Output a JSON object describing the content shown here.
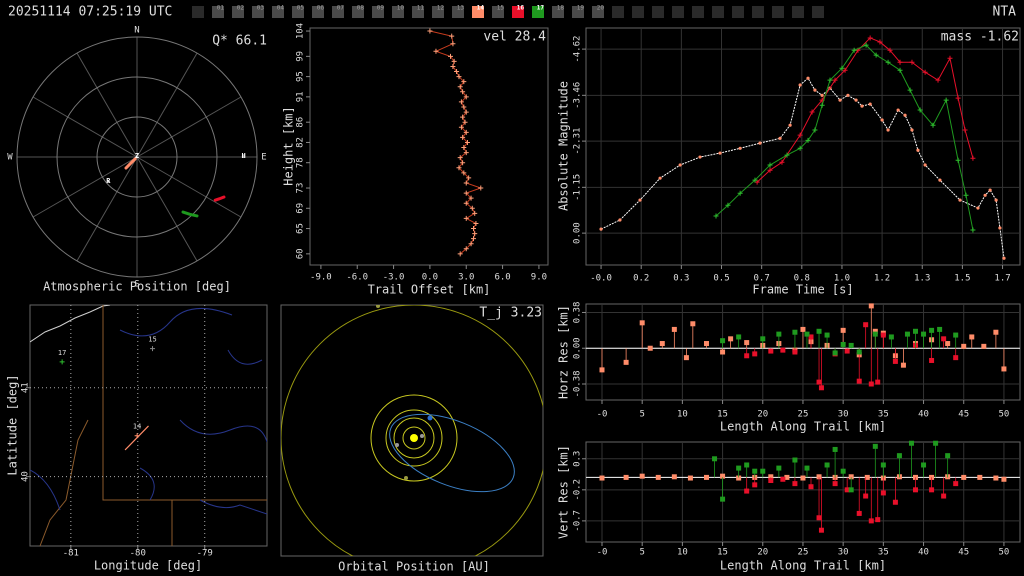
{
  "header": {
    "timestamp": "20251114 07:25:19 UTC",
    "station": "NTA",
    "slots": [
      {
        "label": "01"
      },
      {
        "label": "02"
      },
      {
        "label": "03"
      },
      {
        "label": "04"
      },
      {
        "label": "05"
      },
      {
        "label": "06"
      },
      {
        "label": "07"
      },
      {
        "label": "08"
      },
      {
        "label": "09"
      },
      {
        "label": "10"
      },
      {
        "label": "11"
      },
      {
        "label": "12"
      },
      {
        "label": "13"
      },
      {
        "label": "14",
        "color": "#ff8c69"
      },
      {
        "label": "15"
      },
      {
        "label": "16",
        "color": "#e8102a"
      },
      {
        "label": "17",
        "color": "#1f9a1f"
      },
      {
        "label": "18"
      },
      {
        "label": "19"
      },
      {
        "label": "20"
      }
    ]
  },
  "chart_data": [
    {
      "type": "polar",
      "title": "Atmospheric Position [deg]",
      "annotation": "Q* 66.1",
      "directions": [
        "N",
        "E",
        "S",
        "W"
      ],
      "rlim": [
        0,
        90
      ],
      "rticks": [
        30,
        60,
        90
      ],
      "markers": [
        {
          "label": "Z",
          "az": 0,
          "zd": 0
        },
        {
          "label": "R",
          "az": 229,
          "zd": 28.5
        },
        {
          "label": "H",
          "az": 90,
          "zd": 80
        }
      ],
      "series": [
        {
          "color": "#ff8c69",
          "az": [
            225,
            225,
            225
          ],
          "zd": [
            2,
            7,
            11.7
          ]
        },
        {
          "color": "#e8102a",
          "az": [
            118.9,
            116.8,
            114.7
          ],
          "zd": [
            67,
            69.4,
            71.8
          ]
        },
        {
          "color": "#1f9a1f",
          "az": [
            140.1,
            137.3,
            134.5
          ],
          "zd": [
            53.8,
            58.5,
            63.1
          ]
        }
      ]
    },
    {
      "type": "line",
      "annotation": "vel 28.4",
      "xlabel": "Trail Offset [km]",
      "ylabel": "Height [km]",
      "xlim": [
        -9.9,
        9.75
      ],
      "ylim": [
        57.8,
        104.6
      ],
      "xticks": [
        {
          "value": -9,
          "label": "-9.0"
        },
        {
          "value": -6,
          "label": "-6.0"
        },
        {
          "value": -3,
          "label": "-3.0"
        },
        {
          "value": 0,
          "label": "0.0"
        },
        {
          "value": 3,
          "label": "3.0"
        },
        {
          "value": 6,
          "label": "6.0"
        },
        {
          "value": 9,
          "label": "9.0"
        }
      ],
      "yticks": [
        60,
        65,
        69,
        73,
        78,
        82,
        86,
        91,
        95,
        99,
        104
      ],
      "series": [
        {
          "color": "#c83c1e",
          "marker_color": "#ffa07a",
          "marker": "plus",
          "x": [
            0.0,
            1.8,
            1.9,
            0.5,
            1.7,
            2.0,
            1.9,
            2.2,
            2.4,
            2.8,
            2.5,
            2.7,
            3.0,
            2.6,
            2.8,
            3.0,
            2.7,
            2.9,
            2.6,
            3.0,
            2.7,
            3.1,
            2.8,
            3.0,
            2.5,
            2.7,
            2.4,
            2.8,
            3.2,
            3.0,
            4.2,
            3.0,
            3.4,
            3.0,
            3.5,
            3.7,
            3.0,
            3.8,
            3.6,
            3.7,
            3.6,
            3.4,
            3.0,
            2.5
          ],
          "values": [
            104,
            103,
            101.5,
            100,
            99,
            98,
            97,
            96,
            95,
            94,
            93,
            92,
            91,
            90,
            89,
            88,
            87,
            86,
            85,
            84,
            83,
            82,
            81,
            80,
            79,
            78,
            77,
            76,
            75,
            74,
            73,
            72,
            71,
            70,
            69,
            68,
            67,
            66,
            65,
            64,
            63,
            62,
            61,
            60
          ]
        }
      ]
    },
    {
      "type": "line",
      "annotation": "mass -1.62",
      "xlabel": "Frame Time [s]",
      "ylabel": "Absolute Magnitude",
      "grid": true,
      "xlim": [
        -0.063,
        1.753
      ],
      "ylim": [
        0.8,
        -5.15
      ],
      "xticks": [
        {
          "value": 0,
          "label": "-0.0"
        },
        {
          "value": 0.168,
          "label": "0.2"
        },
        {
          "value": 0.336,
          "label": "0.3"
        },
        {
          "value": 0.504,
          "label": "0.5"
        },
        {
          "value": 0.672,
          "label": "0.7"
        },
        {
          "value": 0.84,
          "label": "0.8"
        },
        {
          "value": 1.008,
          "label": "1.0"
        },
        {
          "value": 1.176,
          "label": "1.2"
        },
        {
          "value": 1.344,
          "label": "1.3"
        },
        {
          "value": 1.512,
          "label": "1.5"
        },
        {
          "value": 1.68,
          "label": "1.7"
        }
      ],
      "yticks": [
        -4.62,
        -3.46,
        -2.31,
        -1.15,
        {
          "value": 0,
          "label": "0.00"
        }
      ],
      "series": [
        {
          "color": "#ffffff",
          "marker_color": "#ff8c69",
          "marker": "dot",
          "x": [
            0.0,
            0.079,
            0.163,
            0.247,
            0.331,
            0.414,
            0.498,
            0.582,
            0.665,
            0.749,
            0.791,
            0.833,
            0.866,
            0.895,
            0.925,
            0.958,
            1.0,
            1.033,
            1.067,
            1.092,
            1.126,
            1.176,
            1.201,
            1.243,
            1.272,
            1.301,
            1.326,
            1.356,
            1.418,
            1.502,
            1.577,
            1.607,
            1.628,
            1.653,
            1.669,
            1.686
          ],
          "values": [
            -0.1,
            -0.33,
            -0.83,
            -1.38,
            -1.71,
            -1.91,
            -2.01,
            -2.13,
            -2.26,
            -2.38,
            -2.71,
            -3.72,
            -3.89,
            -3.59,
            -3.46,
            -3.64,
            -3.34,
            -3.46,
            -3.34,
            -3.19,
            -3.24,
            -2.84,
            -2.59,
            -3.09,
            -2.96,
            -2.59,
            -2.08,
            -1.71,
            -1.33,
            -0.83,
            -0.63,
            -0.95,
            -1.08,
            -0.83,
            -0.13,
            0.63
          ]
        },
        {
          "color": "#e8102a",
          "marker_color": "#e8102a",
          "marker": "plus",
          "x": [
            0.653,
            0.707,
            0.757,
            0.833,
            0.883,
            0.925,
            0.979,
            1.021,
            1.075,
            1.126,
            1.167,
            1.209,
            1.251,
            1.301,
            1.356,
            1.41,
            1.46,
            1.494,
            1.523,
            1.556
          ],
          "values": [
            -1.28,
            -1.58,
            -1.78,
            -2.46,
            -3.04,
            -3.34,
            -3.84,
            -4.09,
            -4.59,
            -4.9,
            -4.8,
            -4.59,
            -4.29,
            -4.29,
            -4.04,
            -3.84,
            -4.39,
            -3.39,
            -2.59,
            -1.88
          ]
        },
        {
          "color": "#1f9a1f",
          "marker_color": "#2fbf2f",
          "marker": "plus",
          "x": [
            0.481,
            0.531,
            0.582,
            0.644,
            0.707,
            0.778,
            0.833,
            0.866,
            0.895,
            0.925,
            0.958,
            1.008,
            1.059,
            1.109,
            1.151,
            1.201,
            1.251,
            1.293,
            1.335,
            1.389,
            1.444,
            1.494,
            1.527,
            1.556
          ],
          "values": [
            -0.43,
            -0.7,
            -1.0,
            -1.33,
            -1.71,
            -1.96,
            -2.13,
            -2.33,
            -2.59,
            -3.21,
            -3.84,
            -4.14,
            -4.59,
            -4.72,
            -4.47,
            -4.29,
            -4.09,
            -3.59,
            -3.09,
            -2.71,
            -3.34,
            -1.83,
            -0.95,
            -0.08
          ]
        }
      ]
    },
    {
      "type": "map",
      "xlabel": "Longitude [deg]",
      "ylabel": "Latitude [deg]",
      "grid": true,
      "grid_style": "dotted",
      "xlim": [
        -81.61,
        -78.07
      ],
      "ylim": [
        39.22,
        41.93
      ],
      "xticks": [
        -81,
        -80,
        -79
      ],
      "yticks": [
        40,
        41
      ],
      "stations": [
        {
          "label": "17",
          "lon": -81.13,
          "lat": 41.29,
          "color": "#2fbf2f"
        },
        {
          "label": "15",
          "lon": -79.78,
          "lat": 41.44,
          "color": "#888888"
        },
        {
          "label": "14",
          "lon": -80.01,
          "lat": 40.46,
          "color": "#ff8c69"
        }
      ],
      "track": {
        "color": "#ff8c69",
        "lon": [
          -80.19,
          -79.84
        ],
        "lat": [
          40.3,
          40.57
        ]
      }
    },
    {
      "type": "orbit",
      "title": "Orbital Position [AU]",
      "annotation": "T_j 3.23"
    },
    {
      "type": "stem",
      "xlabel": "Length Along Trail [km]",
      "ylabel": "Horz Res [km]",
      "grid": true,
      "xlim": [
        -1.99,
        52.0
      ],
      "ylim": [
        -0.55,
        0.47
      ],
      "xticks": [
        {
          "value": 0,
          "label": "-0"
        },
        5,
        10,
        15,
        20,
        25,
        30,
        35,
        40,
        45,
        50
      ],
      "yticks": [
        -0.38,
        {
          "value": 0,
          "label": "0.00"
        },
        0.38
      ],
      "series": [
        {
          "color": "#ff8c69",
          "x": [
            0,
            3,
            5,
            6,
            7.5,
            9,
            10.5,
            11.3,
            13,
            15,
            16,
            18,
            20,
            22,
            24,
            25,
            26,
            28,
            30,
            32,
            33.5,
            34,
            35,
            36.5,
            37.5,
            39,
            41,
            43,
            45,
            46,
            47.5,
            49,
            50
          ],
          "values": [
            -0.23,
            -0.15,
            0.27,
            0,
            0.05,
            0.2,
            -0.1,
            0.26,
            0.05,
            -0.04,
            0.1,
            0.06,
            0.03,
            0.05,
            -0.02,
            0.2,
            0.07,
            0.03,
            0.19,
            -0.07,
            0.45,
            0.18,
            0.16,
            -0.08,
            -0.18,
            0.05,
            0.09,
            0.05,
            0.02,
            0.12,
            0.02,
            0.17,
            -0.22
          ]
        },
        {
          "color": "#e8102a",
          "x": [
            18,
            19,
            21,
            22.5,
            24,
            26,
            27,
            27.3,
            29,
            30.5,
            32,
            32.8,
            33.5,
            34.3,
            35,
            36.5,
            39,
            41,
            42.5,
            44
          ],
          "values": [
            -0.08,
            -0.06,
            -0.03,
            -0.02,
            -0.04,
            0.12,
            -0.36,
            -0.42,
            -0.06,
            -0.03,
            -0.35,
            0.25,
            -0.38,
            -0.36,
            0.14,
            -0.14,
            0.03,
            -0.13,
            0.1,
            -0.1
          ]
        },
        {
          "color": "#1f9a1f",
          "x": [
            15,
            17,
            20,
            22,
            24,
            25.5,
            27,
            28,
            29,
            30,
            31,
            32,
            34,
            36,
            38,
            39,
            40,
            41,
            42,
            44
          ],
          "values": [
            0.08,
            0.12,
            0.1,
            0.15,
            0.17,
            0.15,
            0.18,
            0.14,
            -0.05,
            0.04,
            0.03,
            -0.04,
            0.15,
            0.12,
            0.15,
            0.18,
            0.15,
            0.19,
            0.2,
            0.14
          ]
        }
      ]
    },
    {
      "type": "stem",
      "xlabel": "Length Along Trail [km]",
      "ylabel": "Vert Res [km]",
      "grid": true,
      "xlim": [
        -1.99,
        52.0
      ],
      "ylim": [
        -1.04,
        0.57
      ],
      "xticks": [
        {
          "value": 0,
          "label": "-0"
        },
        5,
        10,
        15,
        20,
        25,
        30,
        35,
        40,
        45,
        50
      ],
      "yticks": [
        0.3,
        -0.2,
        -0.7
      ],
      "series": [
        {
          "color": "#ff8c69",
          "x": [
            0,
            3,
            5,
            7,
            9,
            11,
            13,
            15,
            17,
            19,
            21,
            23,
            25,
            27,
            29,
            31,
            33,
            35,
            37,
            39,
            41,
            43,
            45,
            47,
            49,
            50
          ],
          "values": [
            -0.01,
            0,
            0.02,
            0,
            0.01,
            -0.01,
            0,
            0.02,
            -0.01,
            0,
            0.01,
            0,
            -0.01,
            0.01,
            0,
            0.01,
            0,
            -0.01,
            0.01,
            0,
            0,
            0.01,
            0,
            0,
            -0.01,
            -0.03
          ]
        },
        {
          "color": "#e8102a",
          "x": [
            18,
            19,
            21,
            22.5,
            24,
            26,
            27,
            27.3,
            29,
            30.5,
            32,
            32.8,
            33.5,
            34.3,
            35,
            36.5,
            39,
            41,
            42.5,
            44
          ],
          "values": [
            -0.22,
            -0.12,
            -0.05,
            -0.03,
            -0.1,
            -0.15,
            -0.65,
            -0.85,
            -0.1,
            -0.2,
            -0.58,
            -0.3,
            -0.7,
            -0.68,
            -0.25,
            -0.4,
            -0.2,
            -0.2,
            -0.3,
            -0.1
          ]
        },
        {
          "color": "#1f9a1f",
          "x": [
            14,
            15,
            17,
            18,
            19,
            20,
            22,
            24,
            25.5,
            28,
            29,
            30,
            31,
            34,
            35,
            37,
            38.5,
            40,
            41.5,
            43
          ],
          "values": [
            0.3,
            -0.35,
            0.15,
            0.2,
            0.1,
            0.1,
            0.15,
            0.28,
            0.15,
            0.2,
            0.45,
            0.1,
            -0.2,
            0.5,
            0.2,
            0.35,
            0.55,
            0.2,
            0.55,
            0.35
          ]
        }
      ]
    }
  ]
}
